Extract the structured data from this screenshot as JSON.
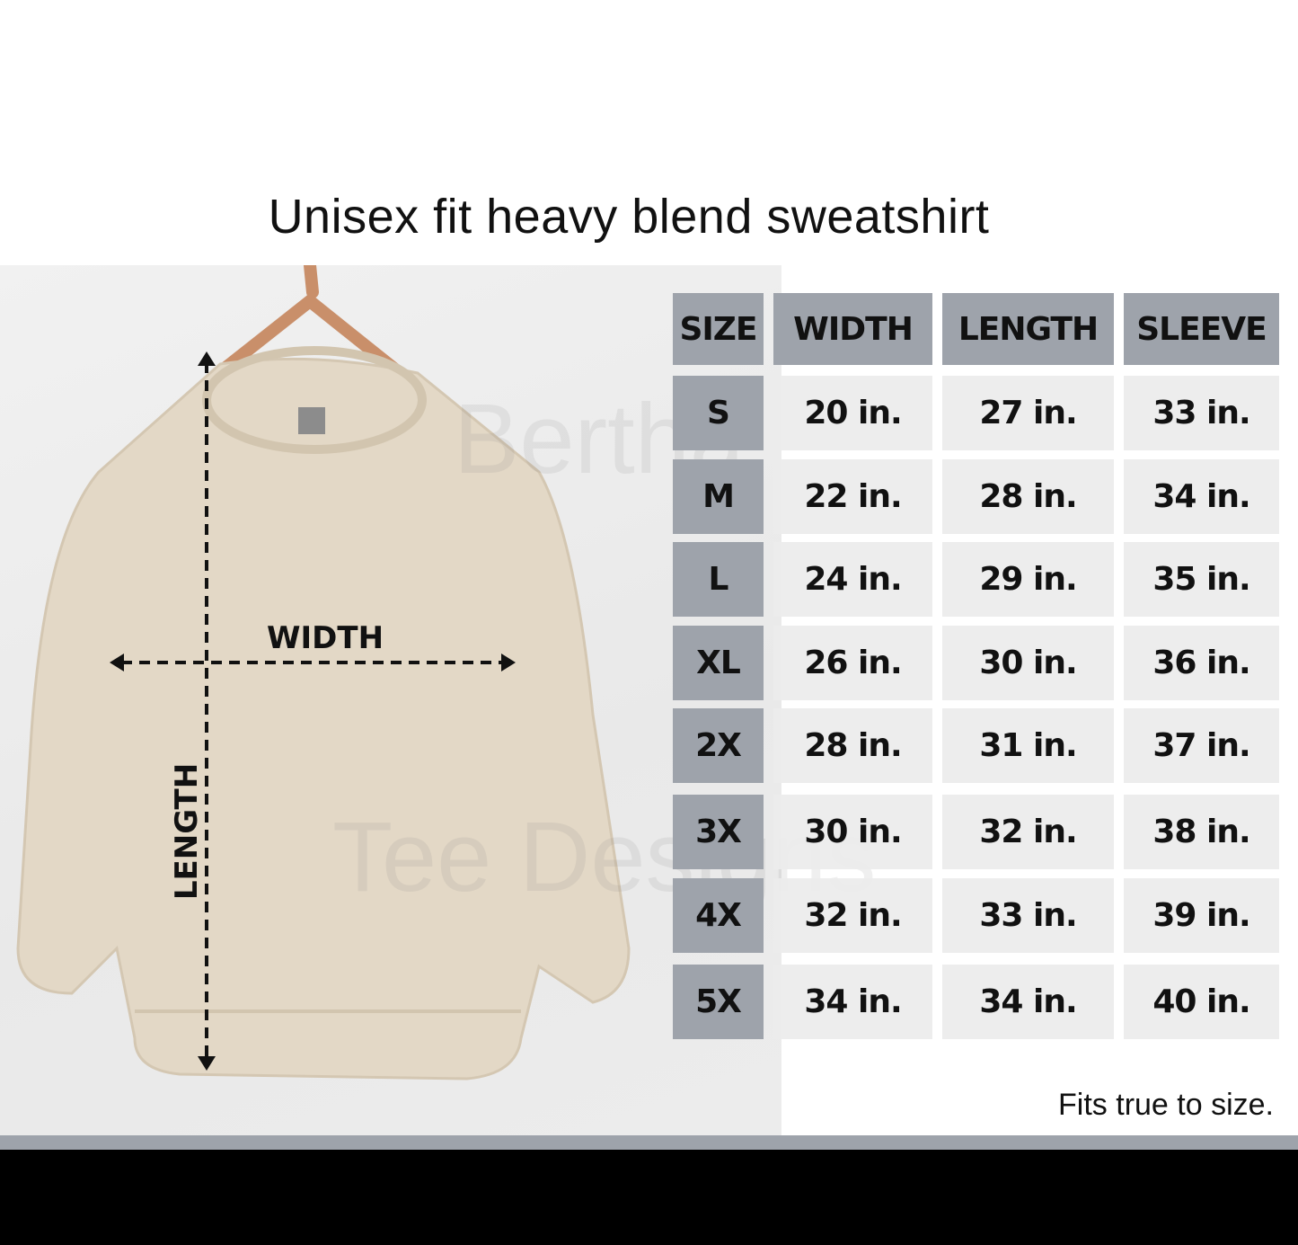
{
  "title": "Unisex fit heavy blend sweatshirt",
  "photo": {
    "width_label": "WIDTH",
    "length_label": "LENGTH",
    "garment_color": "#e3d8c6"
  },
  "watermark": {
    "line1": "Bertha",
    "line2": "Tee Designs"
  },
  "table": {
    "headers": [
      "SIZE",
      "WIDTH",
      "LENGTH",
      "SLEEVE"
    ],
    "rows": [
      [
        "S",
        "20 in.",
        "27 in.",
        "33 in."
      ],
      [
        "M",
        "22 in.",
        "28 in.",
        "34 in."
      ],
      [
        "L",
        "24 in.",
        "29 in.",
        "35 in."
      ],
      [
        "XL",
        "26 in.",
        "30 in.",
        "36 in."
      ],
      [
        "2X",
        "28 in.",
        "31 in.",
        "37 in."
      ],
      [
        "3X",
        "30 in.",
        "32 in.",
        "38 in."
      ],
      [
        "4X",
        "32 in.",
        "33 in.",
        "39 in."
      ],
      [
        "5X",
        "34 in.",
        "34 in.",
        "40 in."
      ]
    ],
    "header_color": "#9ea3ab",
    "cell_color": "#ececec"
  },
  "footnote": "Fits true to size."
}
